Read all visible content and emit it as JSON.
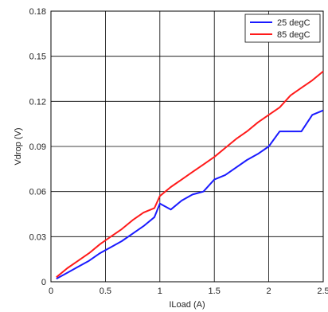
{
  "chart_data": {
    "type": "line",
    "xlabel": "ILoad (A)",
    "ylabel": "Vdrop (V)",
    "xlim": [
      0,
      2.5
    ],
    "ylim": [
      0,
      0.18
    ],
    "xticks": [
      "0",
      "0.5",
      "1",
      "1.5",
      "2",
      "2.5"
    ],
    "yticks": [
      "0",
      "0.03",
      "0.06",
      "0.09",
      "0.12",
      "0.15",
      "0.18"
    ],
    "xtick_values": [
      0,
      0.5,
      1,
      1.5,
      2,
      2.5
    ],
    "ytick_values": [
      0,
      0.03,
      0.06,
      0.09,
      0.12,
      0.15,
      0.18
    ],
    "grid": true,
    "legend": "top-right",
    "series": [
      {
        "name": "25 degC",
        "color": "#1a1aff",
        "x": [
          0.05,
          0.15,
          0.25,
          0.35,
          0.45,
          0.55,
          0.65,
          0.75,
          0.85,
          0.95,
          1.0,
          1.1,
          1.2,
          1.3,
          1.4,
          1.5,
          1.6,
          1.7,
          1.8,
          1.9,
          2.0,
          2.1,
          2.2,
          2.3,
          2.4,
          2.5
        ],
        "y": [
          0.002,
          0.006,
          0.01,
          0.014,
          0.019,
          0.023,
          0.027,
          0.032,
          0.037,
          0.043,
          0.052,
          0.048,
          0.054,
          0.058,
          0.06,
          0.068,
          0.071,
          0.076,
          0.081,
          0.085,
          0.09,
          0.1,
          0.1,
          0.1,
          0.111,
          0.114
        ]
      },
      {
        "name": "85 degC",
        "color": "#ff1a1a",
        "x": [
          0.05,
          0.15,
          0.25,
          0.35,
          0.45,
          0.55,
          0.65,
          0.75,
          0.85,
          0.95,
          1.0,
          1.1,
          1.2,
          1.3,
          1.4,
          1.5,
          1.6,
          1.7,
          1.8,
          1.9,
          2.0,
          2.1,
          2.2,
          2.3,
          2.4,
          2.5
        ],
        "y": [
          0.003,
          0.009,
          0.014,
          0.019,
          0.025,
          0.03,
          0.035,
          0.041,
          0.046,
          0.049,
          0.057,
          0.063,
          0.068,
          0.073,
          0.078,
          0.083,
          0.089,
          0.095,
          0.1,
          0.106,
          0.111,
          0.116,
          0.124,
          0.129,
          0.134,
          0.14
        ]
      }
    ]
  }
}
